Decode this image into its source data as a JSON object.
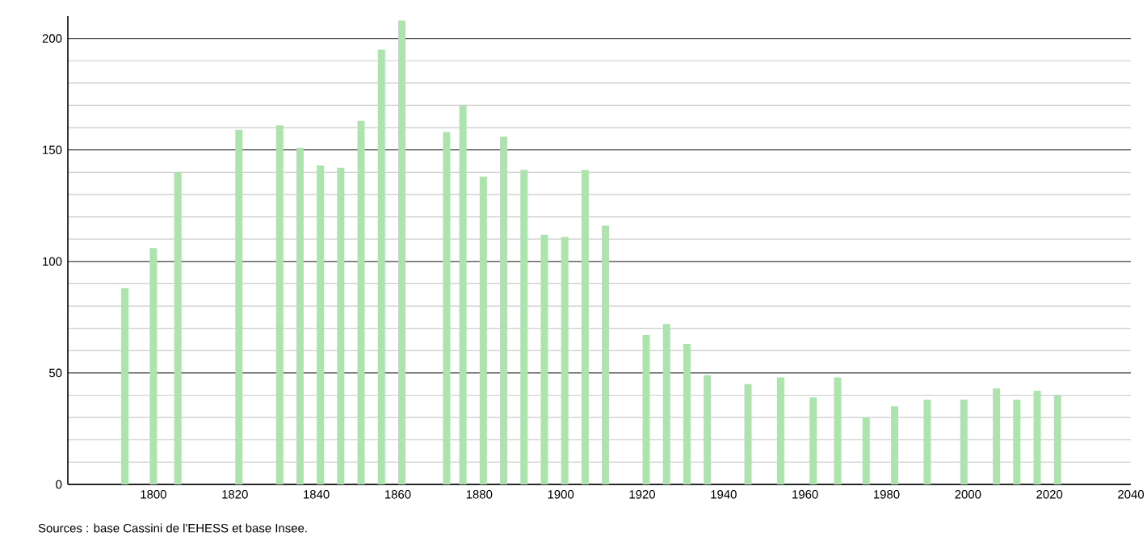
{
  "chart_data": {
    "type": "bar",
    "x": [
      1793,
      1800,
      1806,
      1821,
      1831,
      1836,
      1841,
      1846,
      1851,
      1856,
      1861,
      1872,
      1876,
      1881,
      1886,
      1891,
      1896,
      1901,
      1906,
      1911,
      1921,
      1926,
      1931,
      1936,
      1946,
      1954,
      1962,
      1968,
      1975,
      1982,
      1990,
      1999,
      2007,
      2012,
      2017,
      2022
    ],
    "values": [
      88,
      106,
      140,
      159,
      161,
      151,
      143,
      142,
      163,
      195,
      208,
      158,
      170,
      138,
      156,
      141,
      112,
      111,
      141,
      116,
      67,
      72,
      63,
      49,
      45,
      48,
      39,
      48,
      30,
      35,
      38,
      38,
      43,
      38,
      42,
      40
    ],
    "color": "#ade3ad",
    "xlim": [
      1779,
      2040
    ],
    "xticks": [
      1800,
      1820,
      1840,
      1860,
      1880,
      1900,
      1920,
      1940,
      1960,
      1980,
      2000,
      2020,
      2040
    ],
    "ylim": [
      0,
      210
    ],
    "yticks": [
      0,
      50,
      100,
      150,
      200
    ],
    "grid": "y",
    "annotations": [
      "Sources : base Cassini de l'EHESS et base Insee."
    ]
  }
}
